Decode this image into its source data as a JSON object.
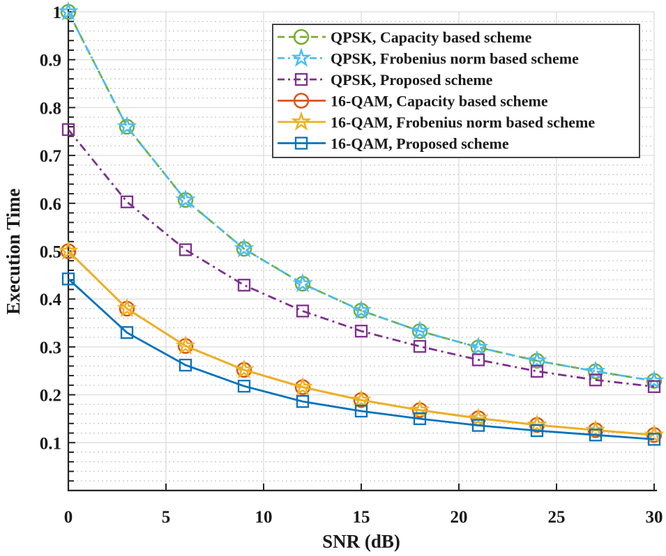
{
  "chart_data": {
    "type": "line",
    "title": "",
    "xlabel": "SNR (dB)",
    "ylabel": "Execution Time",
    "xlim": [
      0,
      30
    ],
    "ylim": [
      0,
      1
    ],
    "xticks": [
      0,
      5,
      10,
      15,
      20,
      25,
      30
    ],
    "yticks": [
      0.1,
      0.2,
      0.3,
      0.4,
      0.5,
      0.6,
      0.7,
      0.8,
      0.9,
      1
    ],
    "ytick_labels": [
      "0.1",
      "0.2",
      "0.3",
      "0.4",
      "0.5",
      "0.6",
      "0.7",
      "0.8",
      "0.9",
      "1"
    ],
    "grid": true,
    "minor_grid": true,
    "legend_position": "top-right",
    "x": [
      0,
      3,
      6,
      9,
      12,
      15,
      18,
      21,
      24,
      27,
      30
    ],
    "series": [
      {
        "name": "QPSK, Capacity based scheme",
        "color": "#77AC30",
        "dash": "dashed",
        "marker": "circle",
        "values": [
          1.0,
          0.76,
          0.607,
          0.505,
          0.432,
          0.376,
          0.333,
          0.299,
          0.271,
          0.249,
          0.229
        ]
      },
      {
        "name": "QPSK, Frobenius norm based scheme",
        "color": "#4DBEEE",
        "dash": "dashdot",
        "marker": "star",
        "values": [
          1.0,
          0.76,
          0.607,
          0.505,
          0.432,
          0.376,
          0.333,
          0.299,
          0.271,
          0.249,
          0.229
        ]
      },
      {
        "name": "QPSK, Proposed scheme",
        "color": "#7E2F8E",
        "dash": "dashdot",
        "marker": "square",
        "values": [
          0.754,
          0.603,
          0.503,
          0.429,
          0.375,
          0.333,
          0.301,
          0.273,
          0.249,
          0.231,
          0.217
        ]
      },
      {
        "name": "16-QAM, Capacity based scheme",
        "color": "#D95319",
        "dash": "solid",
        "marker": "circle",
        "values": [
          0.5,
          0.38,
          0.302,
          0.252,
          0.216,
          0.189,
          0.168,
          0.151,
          0.137,
          0.126,
          0.116
        ]
      },
      {
        "name": "16-QAM, Frobenius norm based scheme",
        "color": "#EDB120",
        "dash": "solid",
        "marker": "star",
        "values": [
          0.5,
          0.38,
          0.302,
          0.252,
          0.216,
          0.189,
          0.168,
          0.151,
          0.137,
          0.126,
          0.116
        ]
      },
      {
        "name": "16-QAM, Proposed scheme",
        "color": "#0072BD",
        "dash": "solid",
        "marker": "square",
        "values": [
          0.442,
          0.33,
          0.262,
          0.218,
          0.186,
          0.166,
          0.15,
          0.136,
          0.125,
          0.116,
          0.107
        ]
      }
    ]
  }
}
